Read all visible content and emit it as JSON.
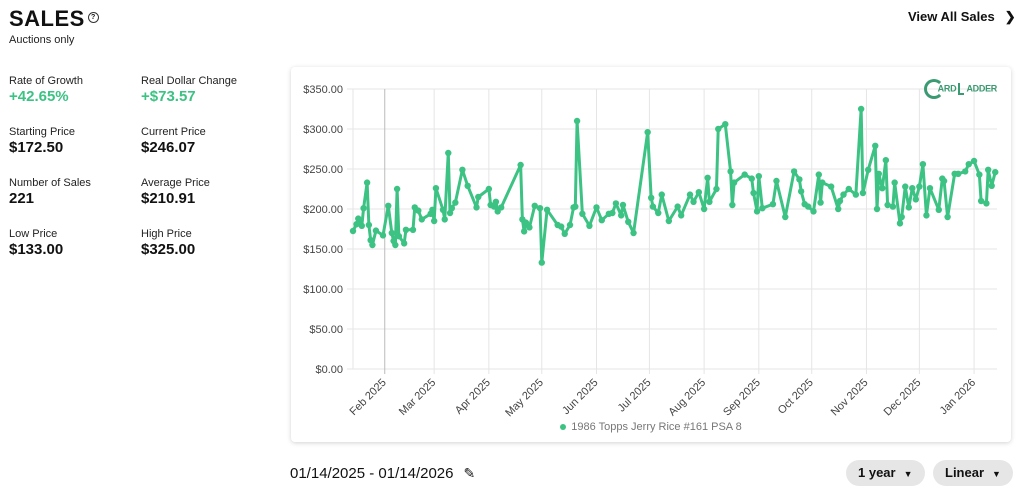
{
  "header": {
    "title": "SALES",
    "help_icon": "question-circle-icon",
    "subtitle": "Auctions only",
    "view_all": "View All Sales",
    "view_all_icon": "chevron-right-icon"
  },
  "stats": [
    {
      "label": "Rate of Growth",
      "value": "+42.65%",
      "positive": true
    },
    {
      "label": "Real Dollar Change",
      "value": "+$73.57",
      "positive": true
    },
    {
      "label": "Starting Price",
      "value": "$172.50"
    },
    {
      "label": "Current Price",
      "value": "$246.07"
    },
    {
      "label": "Number of Sales",
      "value": "221"
    },
    {
      "label": "Average Price",
      "value": "$210.91"
    },
    {
      "label": "Low Price",
      "value": "$133.00"
    },
    {
      "label": "High Price",
      "value": "$325.00"
    }
  ],
  "colors": {
    "accent": "#3cc283",
    "highlight": "#f28c4a"
  },
  "logo": "CARD LADDER",
  "controls": {
    "date_range": "01/14/2025 - 01/14/2026",
    "edit_icon": "pencil-icon",
    "period": "1 year",
    "scale": "Linear"
  },
  "chart_data": {
    "type": "line",
    "ylim": [
      0,
      350
    ],
    "yticks": [
      "$0.00",
      "$50.00",
      "$100.00",
      "$150.00",
      "$200.00",
      "$250.00",
      "$300.00",
      "$350.00"
    ],
    "ytick_values": [
      0,
      50,
      100,
      150,
      200,
      250,
      300,
      350
    ],
    "xlim": [
      "2025-01-14",
      "2026-01-14"
    ],
    "xticks": [
      [
        "2025-02-01",
        "Feb 2025"
      ],
      [
        "2025-03-01",
        "Mar 2025"
      ],
      [
        "2025-04-01",
        "Apr 2025"
      ],
      [
        "2025-05-01",
        "May 2025"
      ],
      [
        "2025-06-01",
        "Jun 2025"
      ],
      [
        "2025-07-01",
        "Jul 2025"
      ],
      [
        "2025-08-01",
        "Aug 2025"
      ],
      [
        "2025-09-01",
        "Sep 2025"
      ],
      [
        "2025-10-01",
        "Oct 2025"
      ],
      [
        "2025-11-01",
        "Nov 2025"
      ],
      [
        "2025-12-01",
        "Dec 2025"
      ],
      [
        "2026-01-01",
        "Jan 2026"
      ]
    ],
    "grid": true,
    "legend": "bottom",
    "series": [
      {
        "name": "1986 Topps Jerry Rice #161 PSA 8",
        "highlight_index": 163,
        "points": [
          [
            "2025-01-14",
            172.5
          ],
          [
            "2025-01-16",
            181
          ],
          [
            "2025-01-17",
            188
          ],
          [
            "2025-01-19",
            179
          ],
          [
            "2025-01-20",
            201
          ],
          [
            "2025-01-22",
            233
          ],
          [
            "2025-01-23",
            180
          ],
          [
            "2025-01-24",
            161
          ],
          [
            "2025-01-25",
            155
          ],
          [
            "2025-01-27",
            173
          ],
          [
            "2025-01-31",
            167
          ],
          [
            "2025-02-03",
            204
          ],
          [
            "2025-02-05",
            170
          ],
          [
            "2025-02-06",
            160
          ],
          [
            "2025-02-07",
            155
          ],
          [
            "2025-02-08",
            225
          ],
          [
            "2025-02-09",
            166
          ],
          [
            "2025-02-12",
            157
          ],
          [
            "2025-02-13",
            174
          ],
          [
            "2025-02-17",
            174
          ],
          [
            "2025-02-18",
            202
          ],
          [
            "2025-02-20",
            198
          ],
          [
            "2025-02-22",
            187
          ],
          [
            "2025-02-27",
            194
          ],
          [
            "2025-02-28",
            199
          ],
          [
            "2025-03-01",
            185
          ],
          [
            "2025-03-02",
            226
          ],
          [
            "2025-03-06",
            199
          ],
          [
            "2025-03-07",
            187
          ],
          [
            "2025-03-09",
            270
          ],
          [
            "2025-03-10",
            195
          ],
          [
            "2025-03-11",
            201
          ],
          [
            "2025-03-13",
            208
          ],
          [
            "2025-03-17",
            249
          ],
          [
            "2025-03-20",
            229
          ],
          [
            "2025-03-25",
            202
          ],
          [
            "2025-03-26",
            215
          ],
          [
            "2025-04-01",
            225
          ],
          [
            "2025-04-02",
            205
          ],
          [
            "2025-04-04",
            203
          ],
          [
            "2025-04-05",
            209
          ],
          [
            "2025-04-06",
            197
          ],
          [
            "2025-04-08",
            202
          ],
          [
            "2025-04-19",
            255
          ],
          [
            "2025-04-20",
            187
          ],
          [
            "2025-04-21",
            172
          ],
          [
            "2025-04-22",
            183
          ],
          [
            "2025-04-24",
            177
          ],
          [
            "2025-04-27",
            204
          ],
          [
            "2025-04-30",
            201
          ],
          [
            "2025-05-01",
            133
          ],
          [
            "2025-05-04",
            199
          ],
          [
            "2025-05-10",
            180
          ],
          [
            "2025-05-12",
            178
          ],
          [
            "2025-05-14",
            169
          ],
          [
            "2025-05-17",
            180
          ],
          [
            "2025-05-19",
            202
          ],
          [
            "2025-05-20",
            203
          ],
          [
            "2025-05-21",
            310
          ],
          [
            "2025-05-24",
            194
          ],
          [
            "2025-05-28",
            179
          ],
          [
            "2025-06-01",
            202
          ],
          [
            "2025-06-04",
            186
          ],
          [
            "2025-06-08",
            194
          ],
          [
            "2025-06-10",
            195
          ],
          [
            "2025-06-12",
            207
          ],
          [
            "2025-06-15",
            192
          ],
          [
            "2025-06-16",
            205
          ],
          [
            "2025-06-19",
            184
          ],
          [
            "2025-06-22",
            170
          ],
          [
            "2025-06-30",
            296
          ],
          [
            "2025-07-02",
            214
          ],
          [
            "2025-07-03",
            203
          ],
          [
            "2025-07-06",
            195
          ],
          [
            "2025-07-08",
            218
          ],
          [
            "2025-07-12",
            185
          ],
          [
            "2025-07-17",
            203
          ],
          [
            "2025-07-19",
            192
          ],
          [
            "2025-07-24",
            218
          ],
          [
            "2025-07-26",
            209
          ],
          [
            "2025-07-29",
            221
          ],
          [
            "2025-08-01",
            200
          ],
          [
            "2025-08-03",
            239
          ],
          [
            "2025-08-04",
            209
          ],
          [
            "2025-08-08",
            225
          ],
          [
            "2025-08-09",
            300
          ],
          [
            "2025-08-13",
            306
          ],
          [
            "2025-08-16",
            247
          ],
          [
            "2025-08-17",
            205
          ],
          [
            "2025-08-18",
            233
          ],
          [
            "2025-08-24",
            243
          ],
          [
            "2025-08-28",
            238
          ],
          [
            "2025-08-29",
            220
          ],
          [
            "2025-08-31",
            197
          ],
          [
            "2025-09-01",
            241
          ],
          [
            "2025-09-03",
            201
          ],
          [
            "2025-09-09",
            206
          ],
          [
            "2025-09-11",
            235
          ],
          [
            "2025-09-16",
            190
          ],
          [
            "2025-09-21",
            247
          ],
          [
            "2025-09-24",
            237
          ],
          [
            "2025-09-25",
            222
          ],
          [
            "2025-09-27",
            206
          ],
          [
            "2025-09-29",
            203
          ],
          [
            "2025-10-02",
            197
          ],
          [
            "2025-10-05",
            243
          ],
          [
            "2025-10-06",
            208
          ],
          [
            "2025-10-07",
            233
          ],
          [
            "2025-10-12",
            228
          ],
          [
            "2025-10-16",
            200
          ],
          [
            "2025-10-17",
            210
          ],
          [
            "2025-10-19",
            218
          ],
          [
            "2025-10-22",
            225
          ],
          [
            "2025-10-26",
            218
          ],
          [
            "2025-10-29",
            325
          ],
          [
            "2025-10-30",
            220
          ],
          [
            "2025-11-02",
            249
          ],
          [
            "2025-11-06",
            279
          ],
          [
            "2025-11-07",
            200
          ],
          [
            "2025-11-08",
            244
          ],
          [
            "2025-11-10",
            226
          ],
          [
            "2025-11-12",
            261
          ],
          [
            "2025-11-13",
            205
          ],
          [
            "2025-11-16",
            203
          ],
          [
            "2025-11-17",
            233
          ],
          [
            "2025-11-20",
            182
          ],
          [
            "2025-11-21",
            190
          ],
          [
            "2025-11-23",
            228
          ],
          [
            "2025-11-25",
            202
          ],
          [
            "2025-11-27",
            226
          ],
          [
            "2025-11-29",
            212
          ],
          [
            "2025-12-01",
            228
          ],
          [
            "2025-12-03",
            256
          ],
          [
            "2025-12-05",
            192
          ],
          [
            "2025-12-07",
            226
          ],
          [
            "2025-12-12",
            199
          ],
          [
            "2025-12-14",
            238
          ],
          [
            "2025-12-15",
            235
          ],
          [
            "2025-12-17",
            190
          ],
          [
            "2025-12-21",
            244
          ],
          [
            "2025-12-23",
            244
          ],
          [
            "2025-12-27",
            247
          ],
          [
            "2025-12-29",
            256
          ],
          [
            "2026-01-01",
            260
          ],
          [
            "2026-01-04",
            243
          ],
          [
            "2026-01-05",
            210
          ],
          [
            "2026-01-08",
            207
          ],
          [
            "2026-01-09",
            249
          ],
          [
            "2026-01-11",
            229
          ],
          [
            "2026-01-13",
            246.07
          ]
        ]
      }
    ]
  }
}
